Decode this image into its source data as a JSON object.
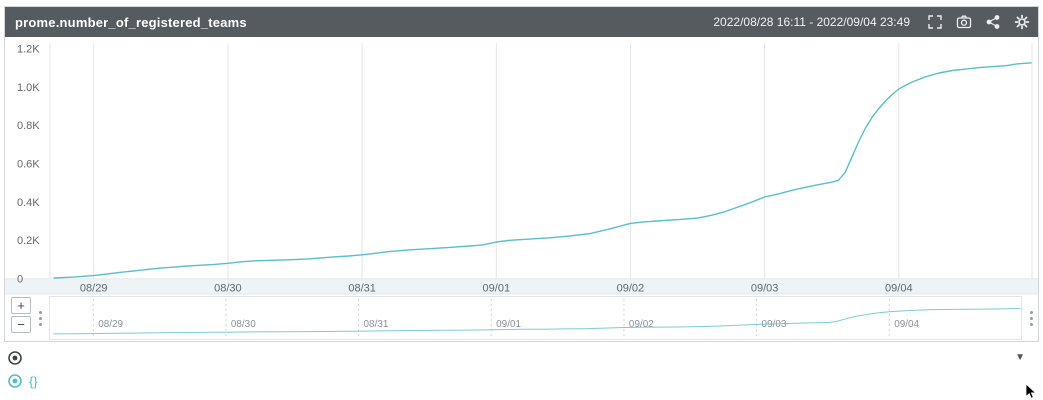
{
  "panel": {
    "title": "prome.number_of_registered_teams",
    "time_range": "2022/08/28 16:11 - 2022/09/04 23:49"
  },
  "navigator": {
    "zoom_in_label": "+",
    "zoom_out_label": "−"
  },
  "controls": {
    "collapse_glyph": "▼"
  },
  "legend": {
    "series_label": "{}"
  },
  "colors": {
    "line": "#5abfc9",
    "header_bg": "#565b60",
    "grid": "#e6e6e6",
    "axis_band": "#eef3f5",
    "axis_text": "#5f6a72",
    "y_text": "#666666",
    "nav_grid": "#cfd4d6",
    "nav_text": "#8a9298",
    "legend_text": "#4fbecb"
  },
  "chart_data": {
    "type": "line",
    "title": "prome.number_of_registered_teams",
    "x_axis": {
      "tick_days": [
        1,
        2,
        3,
        4,
        5,
        6,
        7
      ],
      "tick_labels": [
        "08/29",
        "08/30",
        "08/31",
        "09/01",
        "09/02",
        "09/03",
        "09/04"
      ],
      "range_days": [
        0.674,
        7.993
      ],
      "range_labels": [
        "2022/08/28 16:11",
        "2022/09/04 23:49"
      ]
    },
    "y_axis": {
      "ticks": [
        0,
        200,
        400,
        600,
        800,
        1000,
        1200
      ],
      "tick_labels": [
        "0",
        "0.2K",
        "0.4K",
        "0.6K",
        "0.8K",
        "1.0K",
        "1.2K"
      ],
      "ylim": [
        0,
        1200
      ]
    },
    "grid": "vertical-only",
    "legend_position": "bottom-left",
    "series": [
      {
        "name": "{}",
        "color": "#5abfc9",
        "points_day_value": [
          [
            0.7,
            5
          ],
          [
            0.85,
            10
          ],
          [
            1.0,
            18
          ],
          [
            1.1,
            26
          ],
          [
            1.2,
            35
          ],
          [
            1.3,
            42
          ],
          [
            1.4,
            50
          ],
          [
            1.5,
            57
          ],
          [
            1.6,
            62
          ],
          [
            1.7,
            68
          ],
          [
            1.8,
            72
          ],
          [
            1.9,
            76
          ],
          [
            2.0,
            82
          ],
          [
            2.1,
            90
          ],
          [
            2.2,
            95
          ],
          [
            2.3,
            97
          ],
          [
            2.45,
            100
          ],
          [
            2.6,
            105
          ],
          [
            2.75,
            113
          ],
          [
            2.9,
            120
          ],
          [
            3.0,
            126
          ],
          [
            3.1,
            134
          ],
          [
            3.2,
            143
          ],
          [
            3.35,
            152
          ],
          [
            3.5,
            158
          ],
          [
            3.65,
            165
          ],
          [
            3.8,
            172
          ],
          [
            3.9,
            178
          ],
          [
            4.0,
            193
          ],
          [
            4.1,
            202
          ],
          [
            4.25,
            208
          ],
          [
            4.4,
            215
          ],
          [
            4.55,
            225
          ],
          [
            4.7,
            237
          ],
          [
            4.85,
            262
          ],
          [
            5.0,
            290
          ],
          [
            5.1,
            298
          ],
          [
            5.25,
            305
          ],
          [
            5.4,
            312
          ],
          [
            5.5,
            318
          ],
          [
            5.6,
            332
          ],
          [
            5.7,
            350
          ],
          [
            5.8,
            375
          ],
          [
            5.9,
            400
          ],
          [
            6.0,
            428
          ],
          [
            6.1,
            443
          ],
          [
            6.2,
            462
          ],
          [
            6.3,
            478
          ],
          [
            6.4,
            492
          ],
          [
            6.5,
            505
          ],
          [
            6.55,
            515
          ],
          [
            6.6,
            555
          ],
          [
            6.65,
            635
          ],
          [
            6.7,
            715
          ],
          [
            6.75,
            785
          ],
          [
            6.8,
            842
          ],
          [
            6.85,
            888
          ],
          [
            6.9,
            928
          ],
          [
            6.95,
            962
          ],
          [
            7.0,
            992
          ],
          [
            7.1,
            1028
          ],
          [
            7.2,
            1055
          ],
          [
            7.3,
            1075
          ],
          [
            7.4,
            1088
          ],
          [
            7.5,
            1095
          ],
          [
            7.6,
            1103
          ],
          [
            7.7,
            1108
          ],
          [
            7.8,
            1113
          ],
          [
            7.88,
            1122
          ],
          [
            7.99,
            1128
          ]
        ]
      }
    ]
  }
}
